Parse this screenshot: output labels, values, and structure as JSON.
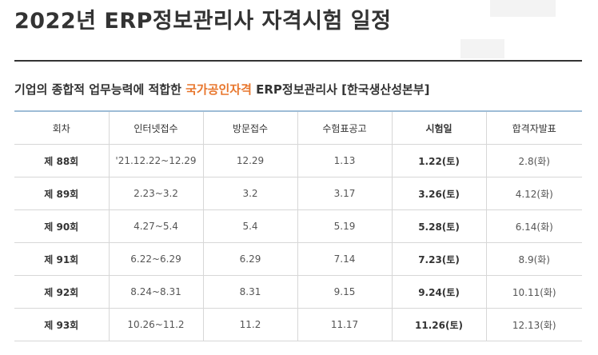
{
  "page": {
    "title": "2022년 ERP정보관리사 자격시험 일정"
  },
  "subtitle": {
    "prefix": "기업의 종합적 업무능력에 적합한 ",
    "highlight": "국가공인자격",
    "suffix": " ERP정보관리사 [한국생산성본부]"
  },
  "colors": {
    "highlight": "#e8762c",
    "header_rule": "#9dbcd6",
    "title_rule": "#333333"
  },
  "table": {
    "headers": [
      "회차",
      "인터넷접수",
      "방문접수",
      "수험표공고",
      "시험일",
      "합격자발표"
    ],
    "rows": [
      [
        "제 88회",
        "'21.12.22~12.29",
        "12.29",
        "1.13",
        "1.22(토)",
        "2.8(화)"
      ],
      [
        "제 89회",
        "2.23~3.2",
        "3.2",
        "3.17",
        "3.26(토)",
        "4.12(화)"
      ],
      [
        "제 90회",
        "4.27~5.4",
        "5.4",
        "5.19",
        "5.28(토)",
        "6.14(화)"
      ],
      [
        "제 91회",
        "6.22~6.29",
        "6.29",
        "7.14",
        "7.23(토)",
        "8.9(화)"
      ],
      [
        "제 92회",
        "8.24~8.31",
        "8.31",
        "9.15",
        "9.24(토)",
        "10.11(화)"
      ],
      [
        "제 93회",
        "10.26~11.2",
        "11.2",
        "11.17",
        "11.26(토)",
        "12.13(화)"
      ]
    ]
  }
}
